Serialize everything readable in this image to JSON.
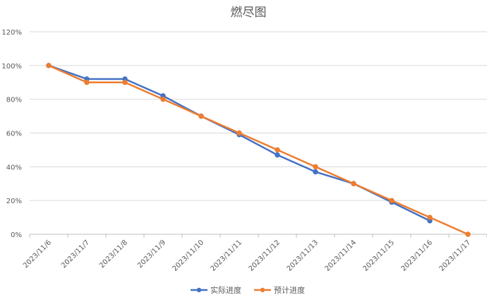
{
  "chart_data": {
    "type": "line",
    "title": "燃尽图",
    "xlabel": "",
    "ylabel": "",
    "categories": [
      "2023/11/6",
      "2023/11/7",
      "2023/11/8",
      "2023/11/9",
      "2023/11/10",
      "2023/11/11",
      "2023/11/12",
      "2023/11/13",
      "2023/11/14",
      "2023/11/15",
      "2023/11/16",
      "2023/11/17"
    ],
    "series": [
      {
        "name": "实际进度",
        "color": "#4472C4",
        "values": [
          100,
          92,
          92,
          82,
          70,
          59,
          47,
          37,
          30,
          19,
          8,
          null
        ]
      },
      {
        "name": "预计进度",
        "color": "#ED7D31",
        "values": [
          100,
          90,
          90,
          80,
          70,
          60,
          50,
          40,
          30,
          20,
          10,
          0
        ]
      }
    ],
    "ylim": [
      0,
      120
    ],
    "y_ticks": [
      "0%",
      "20%",
      "40%",
      "60%",
      "80%",
      "100%",
      "120%"
    ],
    "y_tick_values": [
      0,
      20,
      40,
      60,
      80,
      100,
      120
    ],
    "grid": true,
    "legend_position": "bottom"
  }
}
